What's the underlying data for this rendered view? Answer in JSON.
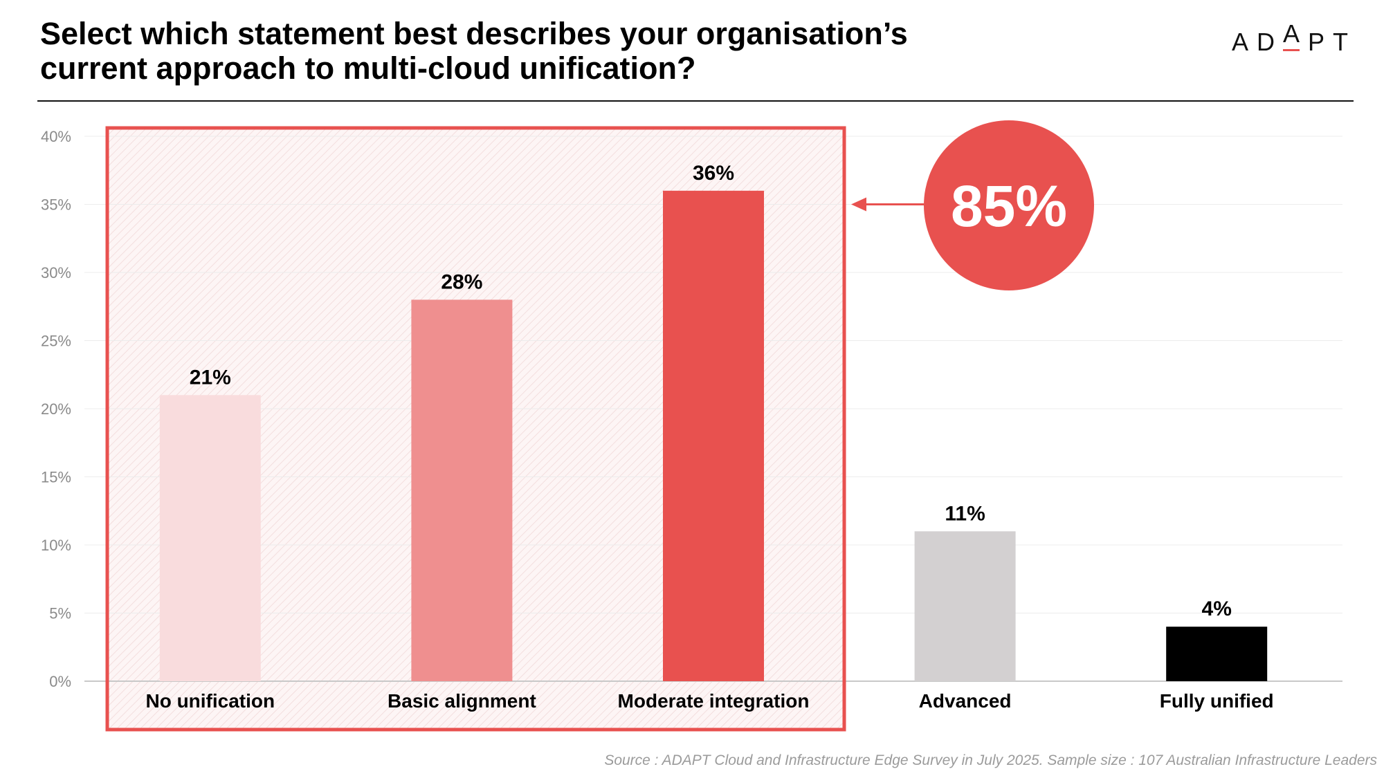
{
  "title": {
    "line1": "Select which statement best describes your organisation’s",
    "line2": "current approach to multi-cloud unification?"
  },
  "logo": {
    "pre": "AD",
    "a": "A",
    "post": "PT"
  },
  "callout": {
    "value": "85%",
    "color": "#e8514f"
  },
  "source": "Source : ADAPT Cloud and Infrastructure Edge Survey in July 2025. Sample size : 107 Australian Infrastructure Leaders",
  "chart_data": {
    "type": "bar",
    "categories": [
      "No unification",
      "Basic alignment",
      "Moderate integration",
      "Advanced",
      "Fully unified"
    ],
    "values": [
      21,
      28,
      36,
      11,
      4
    ],
    "data_labels": [
      "21%",
      "28%",
      "36%",
      "11%",
      "4%"
    ],
    "colors": [
      "#f9dcdd",
      "#ef8f8f",
      "#e8514f",
      "#d3d0d1",
      "#000000"
    ],
    "ylim": [
      0,
      40
    ],
    "yticks": [
      0,
      5,
      10,
      15,
      20,
      25,
      30,
      35,
      40
    ],
    "ytick_labels": [
      "0%",
      "5%",
      "10%",
      "15%",
      "20%",
      "25%",
      "30%",
      "35%",
      "40%"
    ],
    "highlighted_categories": [
      "No unification",
      "Basic alignment",
      "Moderate integration"
    ],
    "title": "",
    "xlabel": "",
    "ylabel": "",
    "grid": true,
    "legend": "none"
  }
}
